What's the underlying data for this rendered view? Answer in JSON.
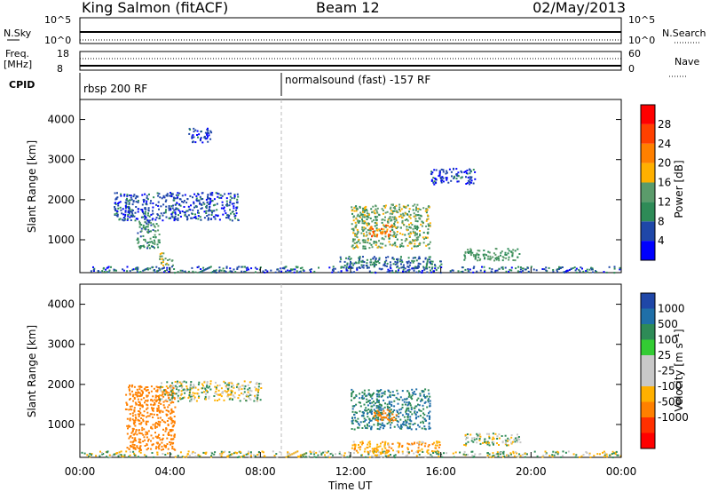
{
  "header": {
    "title": "King Salmon (fitACF)",
    "beam": "Beam 12",
    "date": "02/May/2013"
  },
  "noise_panel": {
    "left_label": "N.Sky",
    "right_label": "N.Search",
    "left_ticks": [
      "10^5",
      "10^0"
    ],
    "right_ticks": [
      "10^5",
      "10^0"
    ]
  },
  "freq_panel": {
    "left_label_1": "Freq.",
    "left_label_2": "[MHz]",
    "right_label": "Nave",
    "left_ticks": [
      "18",
      "8"
    ],
    "right_ticks": [
      "60",
      "0"
    ]
  },
  "cpid_panel": {
    "label": "CPID",
    "segments": [
      "rbsp 200 RF",
      "normalsound (fast) -157 RF"
    ]
  },
  "x_axis": {
    "ticks": [
      "00:00",
      "04:00",
      "08:00",
      "12:00",
      "16:00",
      "20:00",
      "00:00"
    ],
    "label": "Time UT"
  },
  "power_panel": {
    "ylabel": "Slant Range [km]",
    "yticks": [
      "1000",
      "2000",
      "3000",
      "4000"
    ],
    "colorbar_label": "Power [dB]",
    "colorbar_ticks": [
      "4",
      "8",
      "12",
      "16",
      "20",
      "24",
      "28"
    ],
    "colors": [
      "#0000ff",
      "#1f47a8",
      "#2e8b57",
      "#5b9b6b",
      "#ffb000",
      "#ff8000",
      "#ff4000",
      "#ff0000"
    ]
  },
  "velocity_panel": {
    "ylabel": "Slant Range [km]",
    "yticks": [
      "1000",
      "2000",
      "3000",
      "4000"
    ],
    "colorbar_label": "Velocity [m s⁻¹]",
    "colorbar_ticks": [
      "1000",
      "500",
      "100",
      "25",
      "-25",
      "-100",
      "-500",
      "-1000"
    ],
    "colors": [
      "#1f47a8",
      "#1f6fa8",
      "#2e8b57",
      "#33cc33",
      "#c8c8c8",
      "#c8c8c8",
      "#ffb000",
      "#ff8000",
      "#ff3000",
      "#ff0000"
    ]
  },
  "chart_data": {
    "type": "heatmap",
    "x_range_hours": [
      0,
      24
    ],
    "y_range_km": [
      180,
      4500
    ],
    "power_clusters": [
      {
        "t": [
          1.5,
          7.0
        ],
        "r": [
          1500,
          2200
        ],
        "db": 6
      },
      {
        "t": [
          2.5,
          3.5
        ],
        "r": [
          800,
          1500
        ],
        "db": 10
      },
      {
        "t": [
          3.5,
          4.1
        ],
        "r": [
          380,
          700
        ],
        "db": 16
      },
      {
        "t": [
          4.8,
          5.8
        ],
        "r": [
          3450,
          3800
        ],
        "db": 5
      },
      {
        "t": [
          12.0,
          15.5
        ],
        "r": [
          800,
          1900
        ],
        "db": 14
      },
      {
        "t": [
          12.8,
          13.8
        ],
        "r": [
          1100,
          1400
        ],
        "db": 22
      },
      {
        "t": [
          11.5,
          16.0
        ],
        "r": [
          300,
          600
        ],
        "db": 8
      },
      {
        "t": [
          17.0,
          19.5
        ],
        "r": [
          500,
          800
        ],
        "db": 12
      },
      {
        "t": [
          15.5,
          17.5
        ],
        "r": [
          2400,
          2800
        ],
        "db": 5
      }
    ],
    "velocity_clusters": [
      {
        "t": [
          2.0,
          4.2
        ],
        "r": [
          380,
          2000
        ],
        "v": -300
      },
      {
        "t": [
          3.5,
          8.0
        ],
        "r": [
          1600,
          2100
        ],
        "v": 0
      },
      {
        "t": [
          12.0,
          15.5
        ],
        "r": [
          900,
          1900
        ],
        "v": 100
      },
      {
        "t": [
          13.0,
          14.0
        ],
        "r": [
          1100,
          1400
        ],
        "v": -200
      },
      {
        "t": [
          17.0,
          19.5
        ],
        "r": [
          500,
          800
        ],
        "v": 0
      },
      {
        "t": [
          12.0,
          16.0
        ],
        "r": [
          300,
          600
        ],
        "v": -80
      }
    ]
  }
}
